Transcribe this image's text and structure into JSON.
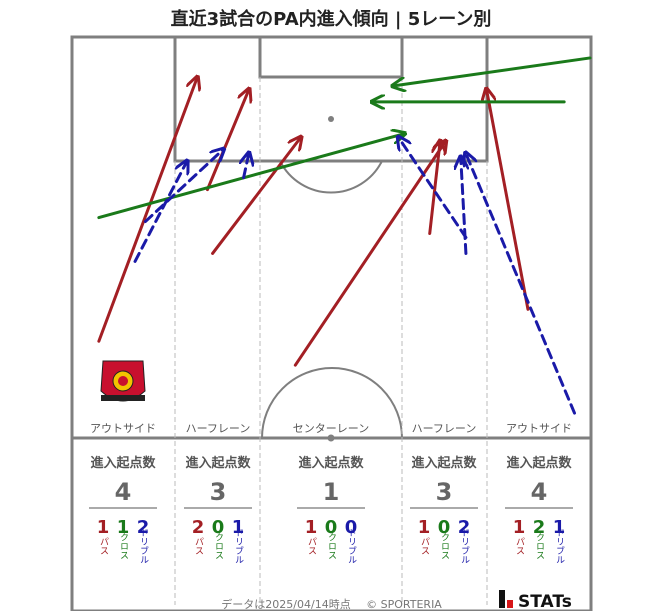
{
  "title": "直近3試合のPA内進入傾向 | 5レーン別",
  "lanes": [
    {
      "name": "アウトサイド",
      "total": 4,
      "pass": 1,
      "cross": 1,
      "dribble": 2
    },
    {
      "name": "ハーフレーン",
      "total": 3,
      "pass": 2,
      "cross": 0,
      "dribble": 1
    },
    {
      "name": "センターレーン",
      "total": 1,
      "pass": 1,
      "cross": 0,
      "dribble": 0
    },
    {
      "name": "ハーフレーン",
      "total": 3,
      "pass": 1,
      "cross": 0,
      "dribble": 2
    },
    {
      "name": "アウトサイド",
      "total": 4,
      "pass": 1,
      "cross": 2,
      "dribble": 1
    }
  ],
  "labels": {
    "start_count": "進入起点数",
    "pass": "パス",
    "cross": "クロス",
    "dribble": "ドリブル"
  },
  "footer": {
    "timestamp": "データは2025/04/14時点",
    "credit": "© SPORTERIA",
    "brand": "STATs"
  },
  "colors": {
    "pass": "#a31f24",
    "cross": "#1a7a1a",
    "dribble": "#1a1aa8",
    "line": "#7f7f7f",
    "lane_divider": "#bbbbbb"
  },
  "icons": {
    "club_crest": "urawa-reds-crest-icon",
    "brand_logo": "j-stats-logo-icon"
  },
  "chart_data": {
    "type": "arrow-map",
    "title": "直近3試合のPA内進入傾向 | 5レーン別",
    "x_domain": [
      0,
      100
    ],
    "y_domain": [
      0,
      100
    ],
    "series": [
      {
        "name": "パス",
        "style": "solid",
        "color": "#a31f24",
        "arrows": [
          {
            "from": [
              5,
              24
            ],
            "to": [
              24,
              90
            ]
          },
          {
            "from": [
              26,
              62
            ],
            "to": [
              34,
              87
            ]
          },
          {
            "from": [
              27,
              46
            ],
            "to": [
              44,
              75
            ]
          },
          {
            "from": [
              43,
              18
            ],
            "to": [
              72,
              74
            ]
          },
          {
            "from": [
              69,
              51
            ],
            "to": [
              71,
              74
            ]
          },
          {
            "from": [
              88,
              32
            ],
            "to": [
              80,
              87
            ]
          }
        ]
      },
      {
        "name": "クロス",
        "style": "solid",
        "color": "#1a7a1a",
        "arrows": [
          {
            "from": [
              100,
              95
            ],
            "to": [
              62,
              88
            ]
          },
          {
            "from": [
              95,
              84
            ],
            "to": [
              58,
              84
            ]
          },
          {
            "from": [
              5,
              55
            ],
            "to": [
              64,
              76
            ]
          }
        ]
      },
      {
        "name": "ドリブル",
        "style": "dashed",
        "color": "#1a1aa8",
        "arrows": [
          {
            "from": [
              12,
              44
            ],
            "to": [
              22,
              69
            ]
          },
          {
            "from": [
              14,
              54
            ],
            "to": [
              29,
              72
            ]
          },
          {
            "from": [
              33,
              65
            ],
            "to": [
              34,
              71
            ]
          },
          {
            "from": [
              76,
              50
            ],
            "to": [
              63,
              75
            ]
          },
          {
            "from": [
              76,
              46
            ],
            "to": [
              75,
              70
            ]
          },
          {
            "from": [
              97,
              6
            ],
            "to": [
              76,
              71
            ]
          }
        ]
      }
    ]
  }
}
